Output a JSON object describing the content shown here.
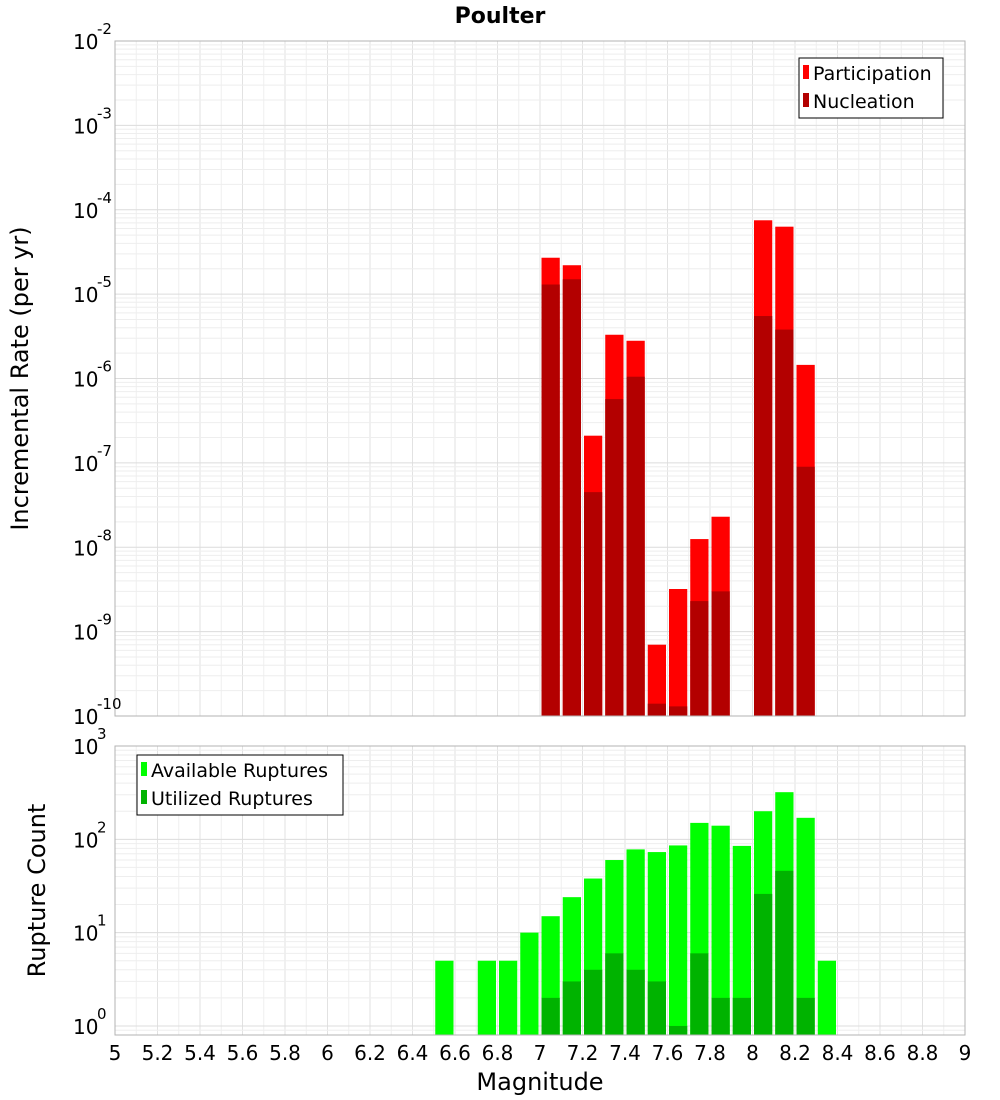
{
  "chart_data": {
    "type": "bar",
    "title": "Poulter",
    "xlabel": "Magnitude",
    "xlim": [
      5,
      9
    ],
    "xticks": [
      "5",
      "5.2",
      "5.4",
      "5.6",
      "5.8",
      "6",
      "6.2",
      "6.4",
      "6.6",
      "6.8",
      "7",
      "7.2",
      "7.4",
      "7.6",
      "7.8",
      "8",
      "8.2",
      "8.4",
      "8.6",
      "8.8",
      "9"
    ],
    "bin_width": 0.1,
    "grid": true,
    "panels": [
      {
        "name": "rates",
        "ylabel": "Incremental Rate (per yr)",
        "yscale": "log",
        "ylim": [
          1e-10,
          0.01
        ],
        "yticks": [
          {
            "base": "10",
            "exp": "-10",
            "value": 1e-10
          },
          {
            "base": "10",
            "exp": "-9",
            "value": 1e-09
          },
          {
            "base": "10",
            "exp": "-8",
            "value": 1e-08
          },
          {
            "base": "10",
            "exp": "-7",
            "value": 1e-07
          },
          {
            "base": "10",
            "exp": "-6",
            "value": 1e-06
          },
          {
            "base": "10",
            "exp": "-5",
            "value": 1e-05
          },
          {
            "base": "10",
            "exp": "-4",
            "value": 0.0001
          },
          {
            "base": "10",
            "exp": "-3",
            "value": 0.001
          },
          {
            "base": "10",
            "exp": "-2",
            "value": 0.01
          }
        ],
        "legend_position": "top-right",
        "series": [
          {
            "name": "Participation",
            "color": "#ff0000",
            "x": [
              7.05,
              7.15,
              7.25,
              7.35,
              7.45,
              7.55,
              7.65,
              7.75,
              7.85,
              8.05,
              8.15,
              8.25
            ],
            "values": [
              2.7e-05,
              2.2e-05,
              2.1e-07,
              3.3e-06,
              2.8e-06,
              7e-10,
              3.2e-09,
              1.25e-08,
              2.3e-08,
              7.5e-05,
              6.3e-05,
              1.45e-06
            ]
          },
          {
            "name": "Nucleation",
            "color": "#b30000",
            "x": [
              7.05,
              7.15,
              7.25,
              7.35,
              7.45,
              7.55,
              7.65,
              7.75,
              7.85,
              8.05,
              8.15,
              8.25
            ],
            "values": [
              1.3e-05,
              1.5e-05,
              4.5e-08,
              5.7e-07,
              1.05e-06,
              1.4e-10,
              1.3e-10,
              2.3e-09,
              3e-09,
              5.5e-06,
              3.8e-06,
              9e-08
            ]
          }
        ]
      },
      {
        "name": "counts",
        "ylabel": "Rupture Count",
        "yscale": "log",
        "ylim": [
          0.8,
          1000
        ],
        "yticks": [
          {
            "base": "10",
            "exp": "0",
            "value": 1
          },
          {
            "base": "10",
            "exp": "1",
            "value": 10
          },
          {
            "base": "10",
            "exp": "2",
            "value": 100
          },
          {
            "base": "10",
            "exp": "3",
            "value": 1000
          }
        ],
        "legend_position": "top-left",
        "series": [
          {
            "name": "Available Ruptures",
            "color": "#00ff00",
            "x": [
              6.55,
              6.75,
              6.85,
              6.95,
              7.05,
              7.15,
              7.25,
              7.35,
              7.45,
              7.55,
              7.65,
              7.75,
              7.85,
              7.95,
              8.05,
              8.15,
              8.25,
              8.35
            ],
            "values": [
              5,
              5,
              5,
              10,
              15,
              24,
              38,
              60,
              78,
              73,
              86,
              150,
              140,
              85,
              200,
              320,
              170,
              5
            ]
          },
          {
            "name": "Utilized Ruptures",
            "color": "#00b300",
            "x": [
              7.05,
              7.15,
              7.25,
              7.35,
              7.45,
              7.55,
              7.65,
              7.75,
              7.85,
              7.95,
              8.05,
              8.15,
              8.25
            ],
            "values": [
              2,
              3,
              4,
              6,
              4,
              3,
              1,
              6,
              2,
              2,
              26,
              46,
              2
            ]
          }
        ]
      }
    ]
  }
}
